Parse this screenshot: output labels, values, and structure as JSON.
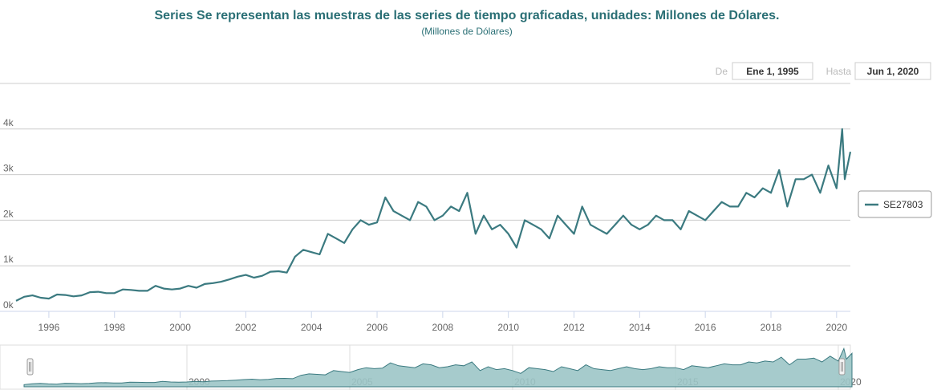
{
  "chart_data": {
    "type": "line",
    "title": "Series  Se representan las muestras de las series de tiempo graficadas, unidades: Millones de Dólares.",
    "subtitle": "(Millones de Dólares)",
    "range_selector": {
      "from_label": "De",
      "from": "Ene 1, 1995",
      "to_label": "Hasta",
      "to": "Jun 1, 2020"
    },
    "x": [
      1995,
      1995.25,
      1995.5,
      1995.75,
      1996,
      1996.25,
      1996.5,
      1996.75,
      1997,
      1997.25,
      1997.5,
      1997.75,
      1998,
      1998.25,
      1998.5,
      1998.75,
      1999,
      1999.25,
      1999.5,
      1999.75,
      2000,
      2000.25,
      2000.5,
      2000.75,
      2001,
      2001.25,
      2001.5,
      2001.75,
      2002,
      2002.25,
      2002.5,
      2002.75,
      2003,
      2003.25,
      2003.5,
      2003.75,
      2004,
      2004.25,
      2004.5,
      2004.75,
      2005,
      2005.25,
      2005.5,
      2005.75,
      2006,
      2006.25,
      2006.5,
      2006.75,
      2007,
      2007.25,
      2007.5,
      2007.75,
      2008,
      2008.25,
      2008.5,
      2008.75,
      2009,
      2009.25,
      2009.5,
      2009.75,
      2010,
      2010.25,
      2010.5,
      2010.75,
      2011,
      2011.25,
      2011.5,
      2011.75,
      2012,
      2012.25,
      2012.5,
      2012.75,
      2013,
      2013.25,
      2013.5,
      2013.75,
      2014,
      2014.25,
      2014.5,
      2014.75,
      2015,
      2015.25,
      2015.5,
      2015.75,
      2016,
      2016.25,
      2016.5,
      2016.75,
      2017,
      2017.25,
      2017.5,
      2017.75,
      2018,
      2018.25,
      2018.5,
      2018.75,
      2019,
      2019.25,
      2019.5,
      2019.75,
      2020,
      2020.17,
      2020.25,
      2020.42
    ],
    "series": [
      {
        "name": "SE27803",
        "color": "#3b7a80",
        "values": [
          230,
          320,
          350,
          300,
          280,
          370,
          360,
          330,
          350,
          420,
          430,
          400,
          400,
          480,
          470,
          450,
          450,
          560,
          500,
          480,
          500,
          560,
          520,
          600,
          620,
          650,
          700,
          760,
          800,
          740,
          780,
          870,
          880,
          850,
          1200,
          1350,
          1300,
          1250,
          1700,
          1600,
          1500,
          1800,
          2000,
          1900,
          1950,
          2500,
          2200,
          2100,
          2000,
          2400,
          2300,
          2000,
          2100,
          2300,
          2200,
          2600,
          1700,
          2100,
          1800,
          1900,
          1700,
          1400,
          2000,
          1900,
          1800,
          1600,
          2100,
          1900,
          1700,
          2300,
          1900,
          1800,
          1700,
          1900,
          2100,
          1900,
          1800,
          1900,
          2100,
          2000,
          2000,
          1800,
          2200,
          2100,
          2000,
          2200,
          2400,
          2300,
          2300,
          2600,
          2500,
          2700,
          2600,
          3100,
          2300,
          2900,
          2900,
          3000,
          2600,
          3200,
          2700,
          4000,
          2900,
          3500
        ]
      }
    ],
    "xlim": [
      1995,
      2020.42
    ],
    "xticks": [
      1996,
      1998,
      2000,
      2002,
      2004,
      2006,
      2008,
      2010,
      2012,
      2014,
      2016,
      2018,
      2020
    ],
    "ylim": [
      0,
      5000
    ],
    "yticks": [
      {
        "value": 0,
        "label": "0k"
      },
      {
        "value": 1000,
        "label": "1k"
      },
      {
        "value": 2000,
        "label": "2k"
      },
      {
        "value": 3000,
        "label": "3k"
      },
      {
        "value": 4000,
        "label": "4k"
      }
    ],
    "navigator": {
      "xticks": [
        2000,
        2005,
        2010,
        2015,
        2020
      ],
      "fill": "#9cc5c7"
    },
    "grid": true,
    "legend": "right"
  }
}
